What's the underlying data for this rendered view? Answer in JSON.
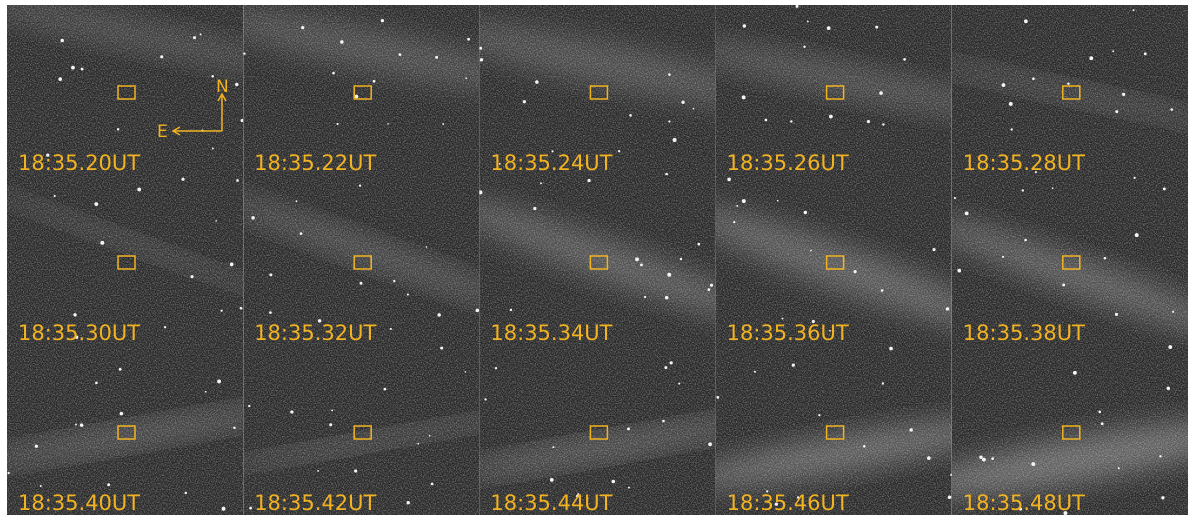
{
  "panels": [
    {
      "label": "18:35.20UT"
    },
    {
      "label": "18:35.22UT"
    },
    {
      "label": "18:35.24UT"
    },
    {
      "label": "18:35.26UT"
    },
    {
      "label": "18:35.28UT"
    },
    {
      "label": "18:35.30UT"
    },
    {
      "label": "18:35.32UT"
    },
    {
      "label": "18:35.34UT"
    },
    {
      "label": "18:35.36UT"
    },
    {
      "label": "18:35.38UT"
    },
    {
      "label": "18:35.40UT"
    },
    {
      "label": "18:35.42UT"
    },
    {
      "label": "18:35.44UT"
    },
    {
      "label": "18:35.46UT"
    },
    {
      "label": "18:35.48UT"
    }
  ],
  "compass": {
    "north": "N",
    "east": "E"
  }
}
